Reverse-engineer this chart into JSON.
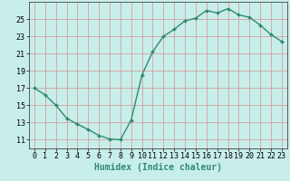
{
  "x": [
    0,
    1,
    2,
    3,
    4,
    5,
    6,
    7,
    8,
    9,
    10,
    11,
    12,
    13,
    14,
    15,
    16,
    17,
    18,
    19,
    20,
    21,
    22,
    23
  ],
  "y": [
    17.0,
    16.2,
    15.0,
    13.5,
    12.8,
    12.2,
    11.5,
    11.1,
    11.0,
    13.3,
    18.5,
    21.2,
    23.0,
    23.8,
    24.8,
    25.1,
    26.0,
    25.7,
    26.2,
    25.5,
    25.2,
    24.3,
    23.2,
    22.4
  ],
  "line_color": "#2e8b70",
  "marker": "D",
  "markersize": 2,
  "linewidth": 1.0,
  "bg_color": "#c8eeea",
  "grid_color": "#d4a0a0",
  "xlabel": "Humidex (Indice chaleur)",
  "xlim": [
    -0.5,
    23.5
  ],
  "ylim": [
    10.0,
    27.0
  ],
  "yticks": [
    11,
    13,
    15,
    17,
    19,
    21,
    23,
    25
  ],
  "xticks": [
    0,
    1,
    2,
    3,
    4,
    5,
    6,
    7,
    8,
    9,
    10,
    11,
    12,
    13,
    14,
    15,
    16,
    17,
    18,
    19,
    20,
    21,
    22,
    23
  ],
  "xlabel_fontsize": 7,
  "tick_fontsize": 6
}
